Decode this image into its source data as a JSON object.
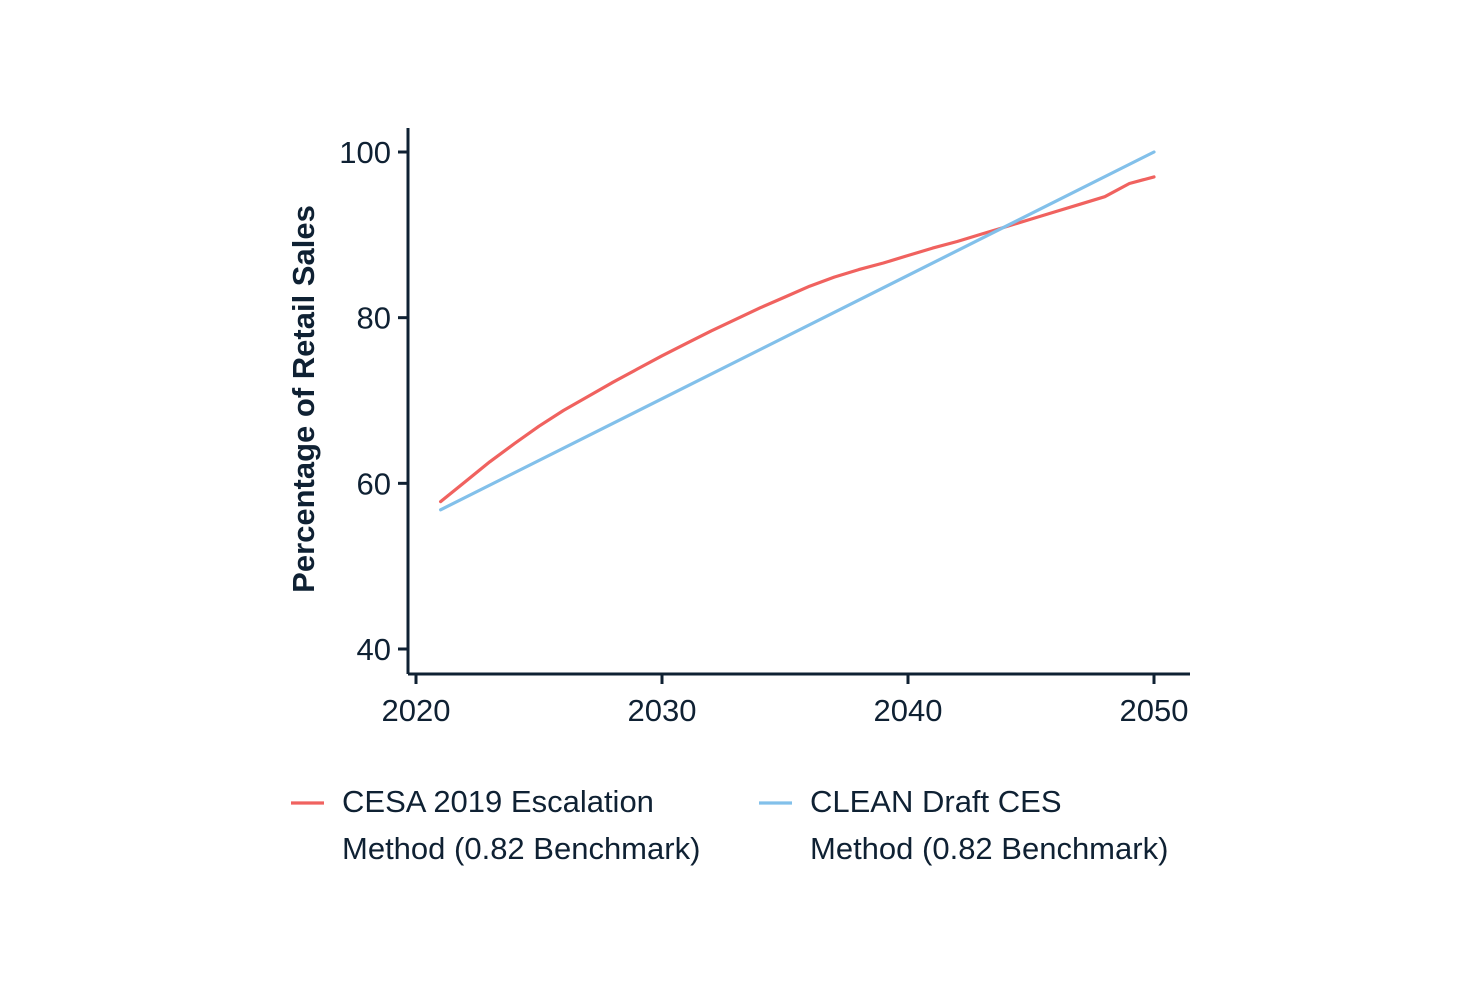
{
  "chart_data": {
    "type": "line",
    "title": "",
    "xlabel": "",
    "ylabel": "Percentage of Retail Sales",
    "xlim": [
      2020,
      2051.5
    ],
    "ylim": [
      37,
      103
    ],
    "x_ticks": [
      2020,
      2030,
      2040,
      2050
    ],
    "y_ticks": [
      40,
      60,
      80,
      100
    ],
    "grid": false,
    "legend_position": "bottom",
    "series": [
      {
        "name_lines": [
          "CESA 2019 Escalation",
          "Method (0.82 Benchmark)"
        ],
        "color": "#f0625f",
        "x": [
          2021,
          2022,
          2023,
          2024,
          2025,
          2026,
          2027,
          2028,
          2029,
          2030,
          2031,
          2032,
          2033,
          2034,
          2035,
          2036,
          2037,
          2038,
          2039,
          2040,
          2041,
          2042,
          2043,
          2044,
          2045,
          2046,
          2047,
          2048,
          2049,
          2050
        ],
        "values": [
          57.8,
          60.2,
          62.6,
          64.8,
          66.9,
          68.8,
          70.5,
          72.2,
          73.8,
          75.4,
          76.9,
          78.4,
          79.8,
          81.2,
          82.5,
          83.8,
          84.9,
          85.8,
          86.6,
          87.5,
          88.4,
          89.2,
          90.1,
          91.0,
          91.9,
          92.8,
          93.7,
          94.6,
          96.2,
          97.0
        ]
      },
      {
        "name_lines": [
          "CLEAN Draft CES",
          "Method (0.82 Benchmark)"
        ],
        "color": "#82c0ea",
        "x": [
          2021,
          2050
        ],
        "values": [
          56.8,
          100
        ]
      }
    ]
  }
}
